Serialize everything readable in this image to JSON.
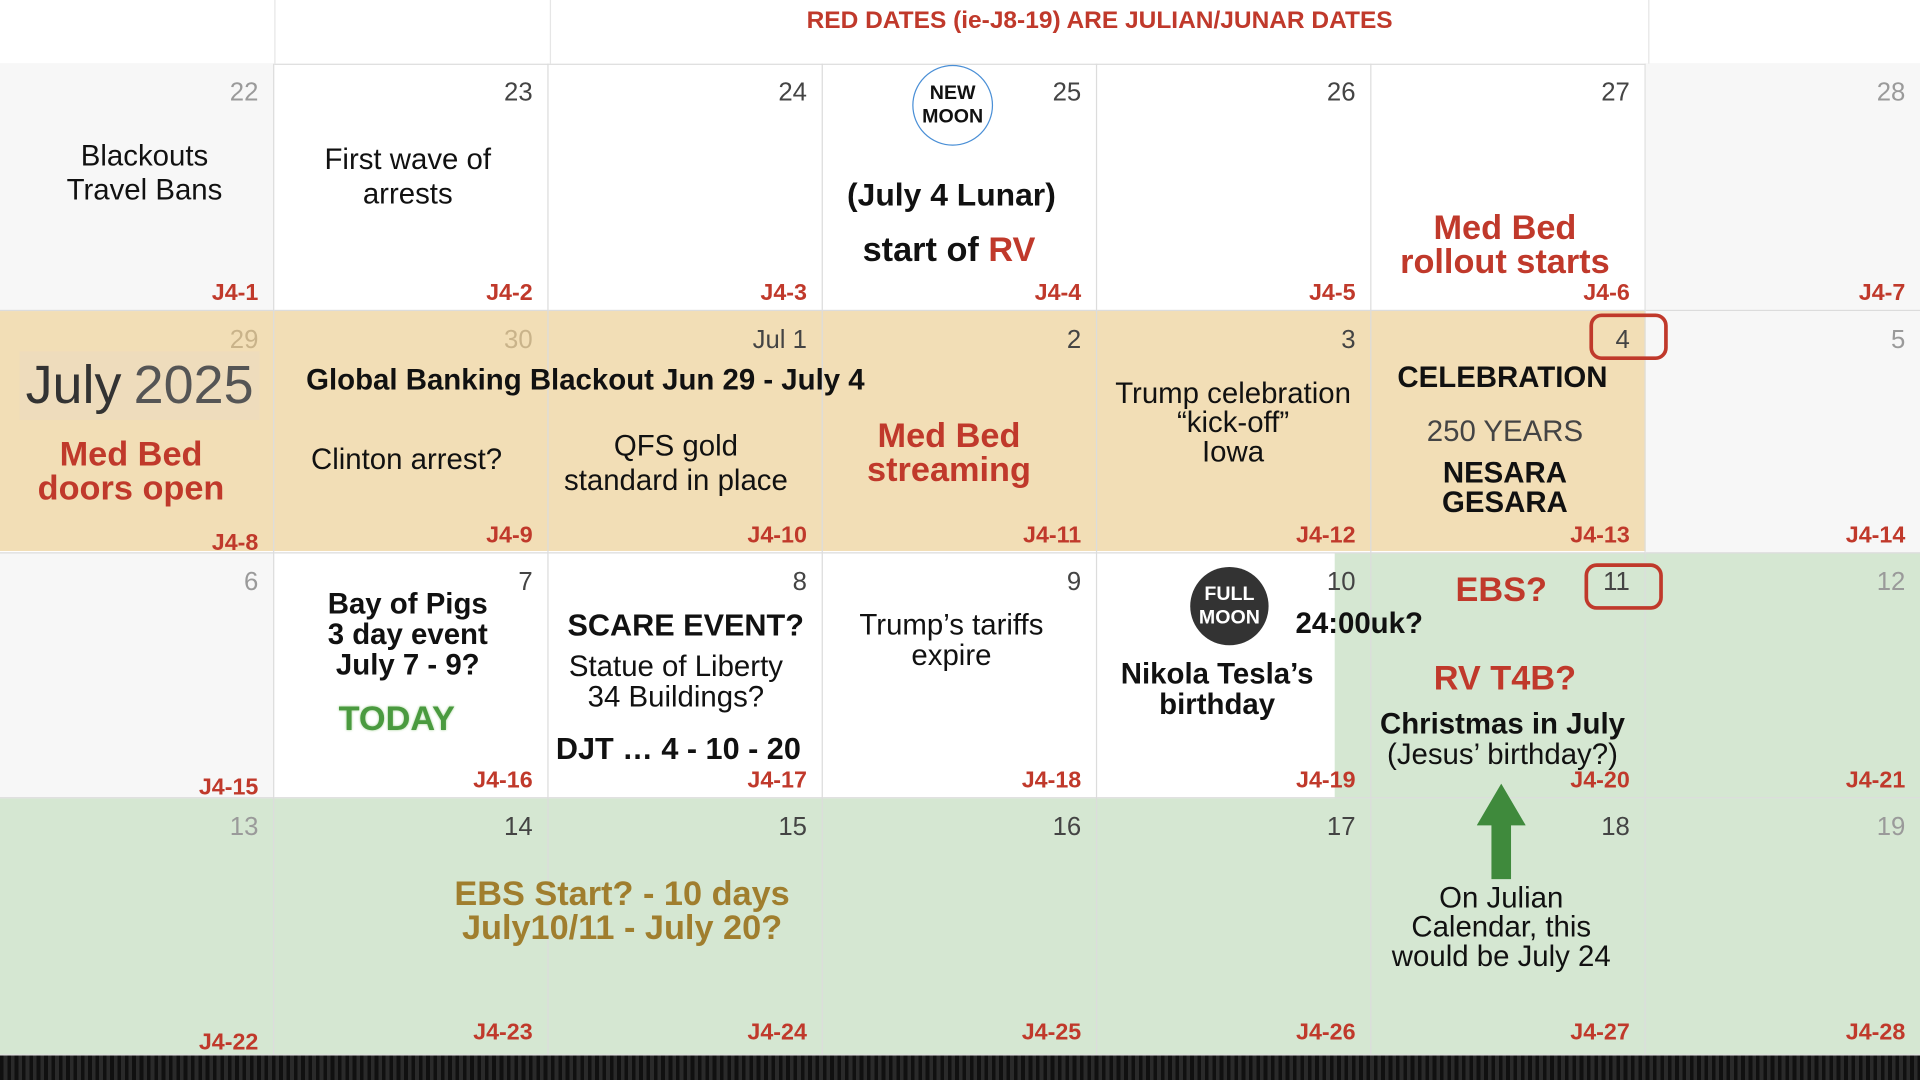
{
  "notice": "RED DATES (ie-J8-19) ARE JULIAN/JUNAR DATES",
  "colors": {
    "red": "#c0392b",
    "tan_band": "#f2deb6",
    "green_band": "#d5e7d2",
    "gold_text": "#a07e2e",
    "green_text": "#4a9a3f",
    "arrow": "#3f8a3c"
  },
  "month_badge": {
    "month": "July",
    "year": "2025"
  },
  "week1": {
    "days": [
      "22",
      "23",
      "24",
      "25",
      "26",
      "27",
      "28"
    ],
    "codes": [
      "J4-1",
      "J4-2",
      "J4-3",
      "J4-4",
      "J4-5",
      "J4-6",
      "J4-7"
    ],
    "blackouts_line1": "Blackouts",
    "blackouts_line2": "Travel Bans",
    "arrests_line1": "First wave of",
    "arrests_line2": "arrests",
    "new_moon_line1": "NEW",
    "new_moon_line2": "MOON",
    "july4_lunar": "(July 4 Lunar)",
    "start_of": "start of ",
    "rv": "RV",
    "medbed_line1": "Med Bed",
    "medbed_line2": "rollout starts"
  },
  "week2": {
    "days": [
      "29",
      "30",
      "Jul 1",
      "2",
      "3",
      "4",
      "5"
    ],
    "codes": [
      "J4-8",
      "J4-9",
      "J4-10",
      "J4-11",
      "J4-12",
      "J4-13",
      "J4-14"
    ],
    "doors_line1": "Med Bed",
    "doors_line2": "doors open",
    "blackout_banner": "Global Banking Blackout Jun 29 - July 4",
    "clinton": "Clinton arrest?",
    "qfs_line1": "QFS gold",
    "qfs_line2": "standard in place",
    "streaming_line1": "Med Bed",
    "streaming_line2": "streaming",
    "trump_line1": "Trump celebration",
    "trump_line2": "“kick-off”",
    "trump_line3": "Iowa",
    "celebration": "CELEBRATION",
    "years250": "250 YEARS",
    "nesara": "NESARA",
    "gesara": "GESARA"
  },
  "week3": {
    "days": [
      "6",
      "7",
      "8",
      "9",
      "10",
      "11",
      "12"
    ],
    "codes": [
      "J4-15",
      "J4-16",
      "J4-17",
      "J4-18",
      "J4-19",
      "J4-20",
      "J4-21"
    ],
    "bay_line1": "Bay of Pigs",
    "bay_line2": "3 day event",
    "bay_line3": "July 7 - 9?",
    "today": "TODAY",
    "scare": "SCARE EVENT?",
    "liberty_line1": "Statue of Liberty",
    "liberty_line2": "34 Buildings?",
    "djt": "DJT … 4 - 10 - 20",
    "tariffs_line1": "Trump’s tariffs",
    "tariffs_line2": "expire",
    "full_moon_line1": "FULL",
    "full_moon_line2": "MOON",
    "time": "24:00uk?",
    "tesla_line1": "Nikola Tesla’s",
    "tesla_line2": "birthday",
    "ebs": "EBS?",
    "rvt4b": "RV T4B?",
    "christmas": "Christmas in July",
    "jesus": "(Jesus’ birthday?)"
  },
  "week4": {
    "days": [
      "13",
      "14",
      "15",
      "16",
      "17",
      "18",
      "19"
    ],
    "codes": [
      "J4-22",
      "J4-23",
      "J4-24",
      "J4-25",
      "J4-26",
      "J4-27",
      "J4-28"
    ],
    "ebs_start_line1": "EBS Start? - 10 days",
    "ebs_start_line2": "July10/11 - July 20?",
    "julian_line1": "On Julian",
    "julian_line2": "Calendar, this",
    "julian_line3": "would be July 24"
  }
}
